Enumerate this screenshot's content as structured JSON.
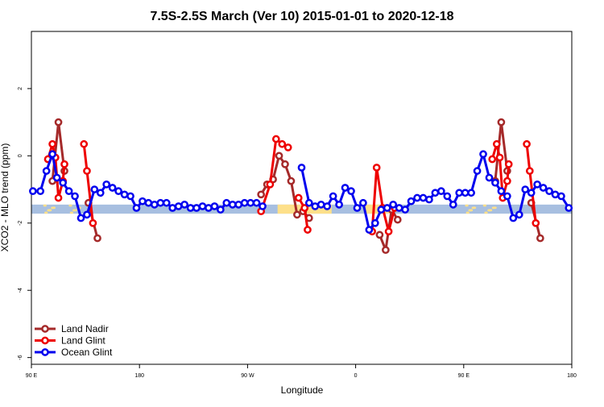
{
  "chart_data": {
    "type": "line",
    "title": "7.5S-2.5S March (Ver 10)   2015-01-01 to 2020-12-18",
    "xlabel": "Longitude",
    "ylabel": "XCO2 - MLO trend (ppm)",
    "xlim": [
      90,
      450
    ],
    "ylim": [
      -6.2,
      3.7
    ],
    "x_ticks": [
      {
        "value": 90,
        "label": "90 E"
      },
      {
        "value": 162,
        "label": "180"
      },
      {
        "value": 234,
        "label": "90 W"
      },
      {
        "value": 306,
        "label": "0"
      },
      {
        "value": 378,
        "label": "90 E"
      },
      {
        "value": 450,
        "label": "180"
      }
    ],
    "y_ticks": [
      {
        "value": -6,
        "label": "-6"
      },
      {
        "value": -4,
        "label": "-4"
      },
      {
        "value": -2,
        "label": "-2"
      },
      {
        "value": 0,
        "label": "0"
      },
      {
        "value": 2,
        "label": "2"
      }
    ],
    "legend_position": "bottom-left",
    "background_band": {
      "y_range": [
        -1.72,
        -1.45
      ],
      "ocean_color": "#a7bfe0",
      "land_color": "#fde08a",
      "land_segments": [
        [
          254,
          290
        ],
        [
          312,
          330
        ]
      ],
      "land_patches": [
        [
          99,
          106
        ],
        [
          116,
          123
        ],
        [
          380,
          386
        ],
        [
          392,
          400
        ]
      ]
    },
    "series": [
      {
        "name": "Land Nadir",
        "color": "#a52a2a",
        "segments": [
          [
            [
              104,
              -0.75
            ],
            [
              108,
              1.0
            ],
            [
              112,
              -0.45
            ]
          ],
          [
            [
              128,
              -1.4
            ],
            [
              134,
              -2.45
            ]
          ],
          [
            [
              243,
              -1.15
            ],
            [
              247,
              -0.85
            ],
            [
              251,
              -0.7
            ],
            [
              255,
              0.0
            ],
            [
              259,
              -0.25
            ],
            [
              263,
              -0.75
            ],
            [
              267,
              -1.75
            ],
            [
              271,
              -1.65
            ],
            [
              275,
              -1.85
            ]
          ],
          [
            [
              322,
              -2.35
            ],
            [
              326,
              -2.8
            ],
            [
              330,
              -1.6
            ],
            [
              334,
              -1.9
            ]
          ],
          [
            [
              399,
              -0.75
            ],
            [
              403,
              1.0
            ],
            [
              407,
              -0.45
            ]
          ],
          [
            [
              423,
              -1.4
            ],
            [
              429,
              -2.45
            ]
          ]
        ]
      },
      {
        "name": "Land Glint",
        "color": "#ee0000",
        "segments": [
          [
            [
              101,
              -0.1
            ],
            [
              104,
              0.35
            ],
            [
              106,
              -0.05
            ],
            [
              108,
              -1.25
            ],
            [
              111,
              -0.75
            ],
            [
              112,
              -0.25
            ]
          ],
          [
            [
              125,
              0.35
            ],
            [
              127,
              -0.45
            ],
            [
              131,
              -2.0
            ]
          ],
          [
            [
              243,
              -1.65
            ],
            [
              249,
              -0.85
            ],
            [
              253,
              0.5
            ],
            [
              257,
              0.35
            ],
            [
              261,
              0.25
            ]
          ],
          [
            [
              268,
              -1.25
            ],
            [
              272,
              -1.55
            ],
            [
              274,
              -2.2
            ]
          ],
          [
            [
              317,
              -2.25
            ],
            [
              320,
              -0.35
            ],
            [
              324,
              -1.55
            ],
            [
              328,
              -2.25
            ],
            [
              332,
              -1.55
            ]
          ],
          [
            [
              397,
              -0.1
            ],
            [
              400,
              0.35
            ],
            [
              402,
              -0.05
            ],
            [
              404,
              -1.25
            ],
            [
              407,
              -0.75
            ],
            [
              408,
              -0.25
            ]
          ],
          [
            [
              420,
              0.35
            ],
            [
              422,
              -0.45
            ],
            [
              426,
              -2.0
            ]
          ]
        ]
      },
      {
        "name": "Ocean Glint",
        "color": "#0000ee",
        "segments": [
          [
            [
              91,
              -1.05
            ],
            [
              96,
              -1.05
            ],
            [
              100,
              -0.45
            ],
            [
              104,
              0.05
            ],
            [
              107,
              -0.65
            ],
            [
              111,
              -0.8
            ],
            [
              115,
              -1.05
            ],
            [
              119,
              -1.2
            ],
            [
              123,
              -1.85
            ],
            [
              127,
              -1.75
            ],
            [
              132,
              -1.0
            ],
            [
              136,
              -1.1
            ],
            [
              140,
              -0.85
            ],
            [
              144,
              -0.95
            ],
            [
              148,
              -1.05
            ],
            [
              152,
              -1.15
            ],
            [
              156,
              -1.2
            ],
            [
              160,
              -1.55
            ],
            [
              164,
              -1.35
            ],
            [
              168,
              -1.4
            ],
            [
              172,
              -1.45
            ],
            [
              176,
              -1.4
            ],
            [
              180,
              -1.4
            ],
            [
              184,
              -1.55
            ],
            [
              188,
              -1.5
            ],
            [
              192,
              -1.45
            ],
            [
              196,
              -1.55
            ],
            [
              200,
              -1.55
            ],
            [
              204,
              -1.5
            ],
            [
              208,
              -1.55
            ],
            [
              212,
              -1.5
            ],
            [
              216,
              -1.6
            ],
            [
              220,
              -1.4
            ],
            [
              224,
              -1.45
            ],
            [
              228,
              -1.45
            ],
            [
              232,
              -1.4
            ],
            [
              236,
              -1.4
            ],
            [
              240,
              -1.4
            ],
            [
              244,
              -1.5
            ]
          ],
          [
            [
              270,
              -0.35
            ],
            [
              275,
              -1.4
            ],
            [
              279,
              -1.5
            ],
            [
              283,
              -1.45
            ],
            [
              287,
              -1.5
            ],
            [
              291,
              -1.2
            ],
            [
              295,
              -1.45
            ],
            [
              299,
              -0.95
            ],
            [
              303,
              -1.05
            ],
            [
              307,
              -1.55
            ],
            [
              311,
              -1.4
            ],
            [
              315,
              -2.2
            ],
            [
              319,
              -2.0
            ],
            [
              323,
              -1.6
            ],
            [
              327,
              -1.55
            ],
            [
              331,
              -1.45
            ],
            [
              335,
              -1.55
            ],
            [
              339,
              -1.6
            ],
            [
              343,
              -1.35
            ],
            [
              347,
              -1.25
            ],
            [
              351,
              -1.25
            ],
            [
              355,
              -1.3
            ],
            [
              359,
              -1.1
            ],
            [
              363,
              -1.05
            ],
            [
              367,
              -1.2
            ],
            [
              371,
              -1.45
            ],
            [
              375,
              -1.1
            ],
            [
              379,
              -1.1
            ],
            [
              383,
              -1.1
            ],
            [
              387,
              -0.45
            ],
            [
              391,
              0.05
            ],
            [
              395,
              -0.65
            ],
            [
              399,
              -0.8
            ],
            [
              403,
              -1.05
            ],
            [
              407,
              -1.2
            ],
            [
              411,
              -1.85
            ],
            [
              415,
              -1.75
            ],
            [
              419,
              -1.0
            ],
            [
              423,
              -1.1
            ],
            [
              427,
              -0.85
            ],
            [
              431,
              -0.95
            ],
            [
              435,
              -1.05
            ],
            [
              439,
              -1.15
            ],
            [
              443,
              -1.2
            ],
            [
              448,
              -1.55
            ]
          ]
        ]
      }
    ]
  }
}
